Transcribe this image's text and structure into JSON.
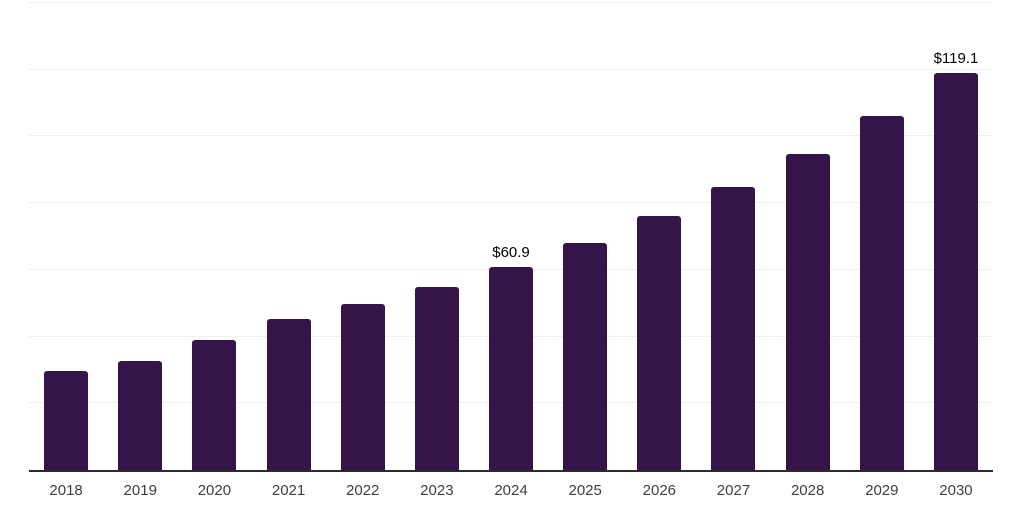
{
  "chart_data": {
    "type": "bar",
    "title": "",
    "xlabel": "",
    "ylabel": "",
    "categories": [
      "2018",
      "2019",
      "2020",
      "2021",
      "2022",
      "2023",
      "2024",
      "2025",
      "2026",
      "2027",
      "2028",
      "2029",
      "2030"
    ],
    "values": [
      29.8,
      32.6,
      39.1,
      45.2,
      49.7,
      54.9,
      60.9,
      68.1,
      76.1,
      84.9,
      94.7,
      106.2,
      119.1
    ],
    "data_labels": [
      "",
      "",
      "",
      "",
      "",
      "",
      "$60.9",
      "",
      "",
      "",
      "",
      "",
      "$119.1"
    ],
    "ylim": [
      0,
      140
    ],
    "gridline_step": 20,
    "grid": true,
    "legend": false,
    "y_axis_labels_shown": false,
    "bar_color": "#351549",
    "grid_color": "#efefef",
    "axis_color": "#2b2b2b",
    "tick_label_color": "#404040",
    "data_label_color": "#000000"
  }
}
